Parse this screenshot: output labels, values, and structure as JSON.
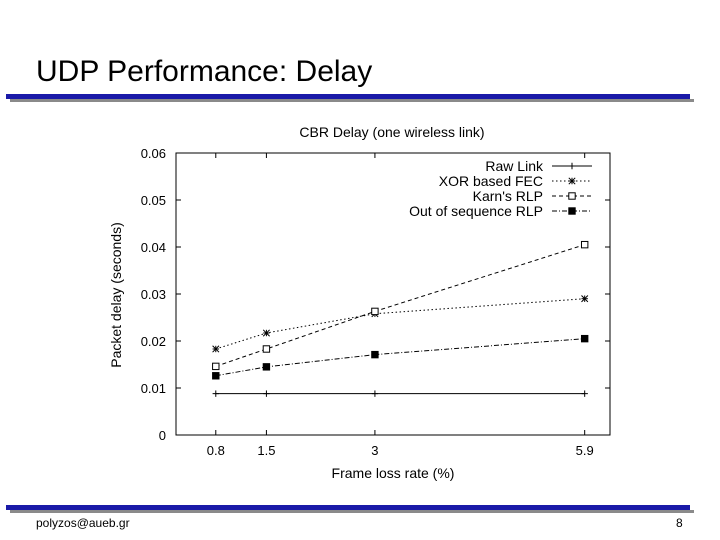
{
  "slide": {
    "title": "UDP Performance: Delay",
    "footer_left": "polyzos@aueb.gr",
    "page_number": "8"
  },
  "colors": {
    "title_rule": "#1a1aa8",
    "title_rule_shadow": "#8a8a8a"
  },
  "chart_data": {
    "type": "line",
    "title": "CBR Delay (one wireless link)",
    "xlabel": "Frame loss rate (%)",
    "ylabel": "Packet delay (seconds)",
    "categories": [
      "0.8",
      "1.5",
      "3",
      "5.9"
    ],
    "x": [
      0.8,
      1.5,
      3,
      5.9
    ],
    "xlim": [
      0.25,
      6.25
    ],
    "ylim": [
      0,
      0.06
    ],
    "yticks": [
      "0",
      "0.01",
      "0.02",
      "0.03",
      "0.04",
      "0.05",
      "0.06"
    ],
    "legend_position": "top-right",
    "series": [
      {
        "name": "Raw Link",
        "marker": "plus",
        "dash": "solid",
        "values": [
          0.0088,
          0.0088,
          0.0088,
          0.0088
        ]
      },
      {
        "name": "XOR based FEC",
        "marker": "asterisk",
        "dash": "dotted",
        "values": [
          0.0183,
          0.0217,
          0.0258,
          0.029
        ]
      },
      {
        "name": "Karn's RLP",
        "marker": "open-square",
        "dash": "dashed",
        "values": [
          0.0146,
          0.0183,
          0.0263,
          0.0405
        ]
      },
      {
        "name": "Out of sequence RLP",
        "marker": "filled-square",
        "dash": "dashdot",
        "values": [
          0.0126,
          0.0145,
          0.0171,
          0.0205
        ]
      }
    ]
  }
}
